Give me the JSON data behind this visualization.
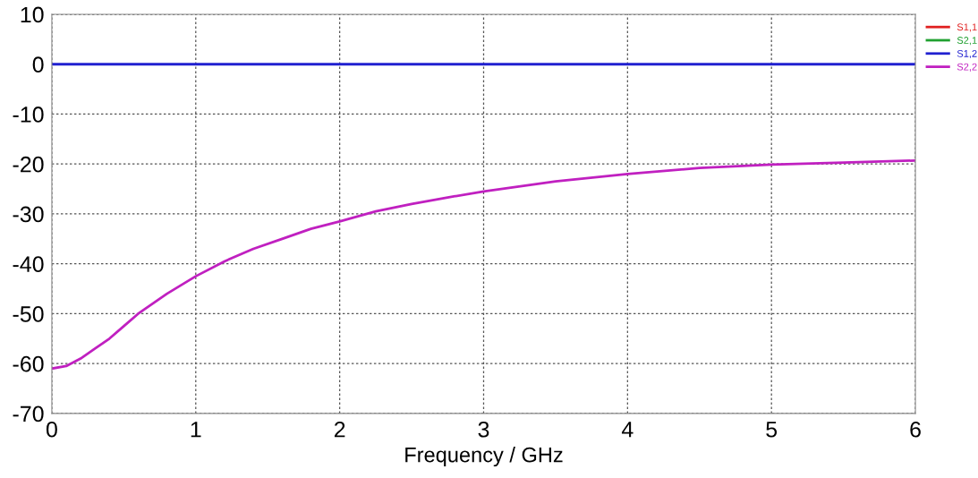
{
  "chart_data": {
    "type": "line",
    "xlabel": "Frequency / GHz",
    "x": [
      0,
      0.1,
      0.2,
      0.3,
      0.4,
      0.5,
      0.6,
      0.8,
      1.0,
      1.2,
      1.4,
      1.6,
      1.8,
      2.0,
      2.25,
      2.5,
      2.75,
      3.0,
      3.5,
      4.0,
      4.5,
      5.0,
      5.5,
      6.0
    ],
    "series": [
      {
        "name": "S1,1",
        "color": "#e02020",
        "values": [
          null,
          null,
          null,
          null,
          null,
          null,
          null,
          null,
          null,
          null,
          null,
          null,
          null,
          null,
          null,
          null,
          null,
          null,
          null,
          null,
          null,
          null,
          null,
          null
        ]
      },
      {
        "name": "S2,1",
        "color": "#20a030",
        "values": [
          null,
          null,
          null,
          null,
          null,
          null,
          null,
          null,
          null,
          null,
          null,
          null,
          null,
          null,
          null,
          null,
          null,
          null,
          null,
          null,
          null,
          null,
          null,
          null
        ]
      },
      {
        "name": "S1,2",
        "color": "#2020d0",
        "values": [
          0,
          0,
          0,
          0,
          0,
          0,
          0,
          0,
          0,
          0,
          0,
          0,
          0,
          0,
          0,
          0,
          0,
          0,
          0,
          0,
          0,
          0,
          0,
          0
        ]
      },
      {
        "name": "S2,2",
        "color": "#c020c0",
        "values": [
          -61,
          -60.5,
          -59,
          -57,
          -55,
          -52.5,
          -50,
          -46,
          -42.5,
          -39.5,
          -37,
          -35,
          -33,
          -31.5,
          -29.5,
          -28,
          -26.7,
          -25.5,
          -23.5,
          -22,
          -20.8,
          -20.1,
          -19.7,
          -19.3
        ]
      }
    ],
    "xlim": [
      0,
      6
    ],
    "xticks": [
      0,
      1,
      2,
      3,
      4,
      5,
      6
    ],
    "ylim": [
      -70,
      10
    ],
    "yticks": [
      -70,
      -60,
      -50,
      -40,
      -30,
      -20,
      -10,
      0,
      10
    ],
    "grid": true,
    "legend": "top right",
    "marker": "none",
    "line_style": "solid"
  }
}
